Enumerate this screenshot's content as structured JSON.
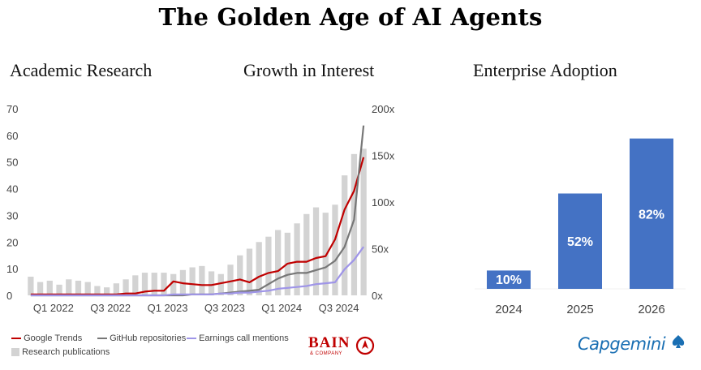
{
  "title": "The Golden Age of AI Agents",
  "sections": {
    "academic": "Academic Research",
    "growth": "Growth in Interest",
    "enterprise": "Enterprise Adoption"
  },
  "brands": {
    "left_logo": "BAIN",
    "left_logo_sub": "& COMPANY",
    "right_logo": "Capgemini"
  },
  "chart_data": [
    {
      "type": "bar+line",
      "left_axis": {
        "ticks": [
          "0",
          "10",
          "20",
          "30",
          "40",
          "50",
          "60",
          "70"
        ],
        "ylim": [
          0,
          70
        ]
      },
      "right_axis": {
        "ticks": [
          "0x",
          "50x",
          "100x",
          "150x",
          "200x"
        ],
        "ylim": [
          0,
          200
        ]
      },
      "x_tick_labels": [
        "Q1 2022",
        "Q3 2022",
        "Q1 2023",
        "Q3 2023",
        "Q1 2024",
        "Q3 2024"
      ],
      "months": 36,
      "bar_series": {
        "name": "Research publications",
        "axis": "left",
        "color": "#d3d3d3",
        "values": [
          7,
          5,
          5.5,
          4,
          6,
          5.5,
          5,
          3.5,
          3,
          4.5,
          6,
          7.5,
          8.5,
          8.5,
          8.5,
          8,
          9.5,
          10.5,
          11,
          9,
          8,
          11.5,
          15,
          17.5,
          20,
          22,
          24.5,
          23.5,
          27,
          30.5,
          33,
          31,
          34,
          45,
          53,
          55
        ]
      },
      "line_series": [
        {
          "name": "Google Trends",
          "axis": "right",
          "color": "#c00000",
          "values": [
            1,
            1,
            1,
            1,
            1,
            1,
            1,
            1,
            1,
            1,
            2,
            2,
            4,
            5,
            5,
            15,
            13,
            12,
            11,
            11,
            13,
            15,
            17,
            14,
            20,
            24,
            26,
            34,
            36,
            36,
            40,
            42,
            60,
            92,
            112,
            148
          ]
        },
        {
          "name": "GitHub repositories",
          "axis": "right",
          "color": "#777777",
          "values": [
            0,
            0,
            0,
            0,
            0,
            0,
            0,
            0,
            0,
            0,
            0,
            0,
            0,
            0,
            0,
            0,
            0,
            1,
            1,
            1,
            2,
            3,
            4,
            5,
            6,
            12,
            18,
            22,
            24,
            24,
            27,
            30,
            37,
            52,
            81,
            182
          ]
        },
        {
          "name": "Earnings call mentions",
          "axis": "right",
          "color": "#9f95e8",
          "values": [
            0,
            0,
            0,
            0,
            0,
            0,
            0,
            0,
            0,
            0,
            0,
            0,
            0,
            0,
            0,
            1,
            1,
            1,
            1,
            1,
            2,
            2,
            3,
            3,
            4,
            5,
            7,
            8,
            9,
            10,
            12,
            13,
            14,
            28,
            38,
            52
          ]
        }
      ]
    },
    {
      "type": "bar",
      "categories": [
        "2024",
        "2025",
        "2026"
      ],
      "values": [
        10,
        52,
        82
      ],
      "labels": [
        "10%",
        "52%",
        "82%"
      ],
      "color": "#4472c4",
      "label_color": "#ffffff",
      "ylim": [
        0,
        100
      ]
    }
  ]
}
